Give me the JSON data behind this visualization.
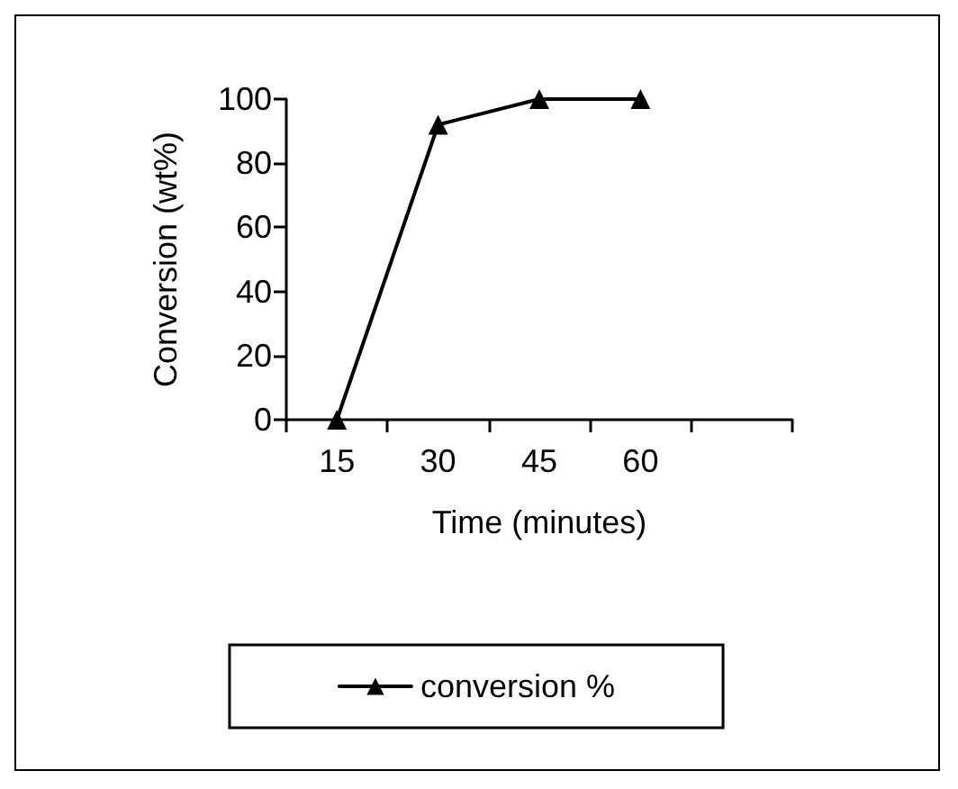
{
  "chart_data": {
    "type": "line",
    "xlabel": "Time (minutes)",
    "ylabel": "Conversion (wt%)",
    "categories": [
      "15",
      "30",
      "45",
      "60",
      null
    ],
    "series": [
      {
        "name": "conversion %",
        "color": "#000000",
        "values": [
          0,
          92,
          100,
          100,
          null
        ]
      }
    ],
    "ylim": [
      0,
      100
    ],
    "yticks": [
      0,
      20,
      40,
      60,
      80,
      100
    ],
    "grid": false,
    "legend": "bottom",
    "marker": "triangle",
    "line_style": "solid"
  }
}
